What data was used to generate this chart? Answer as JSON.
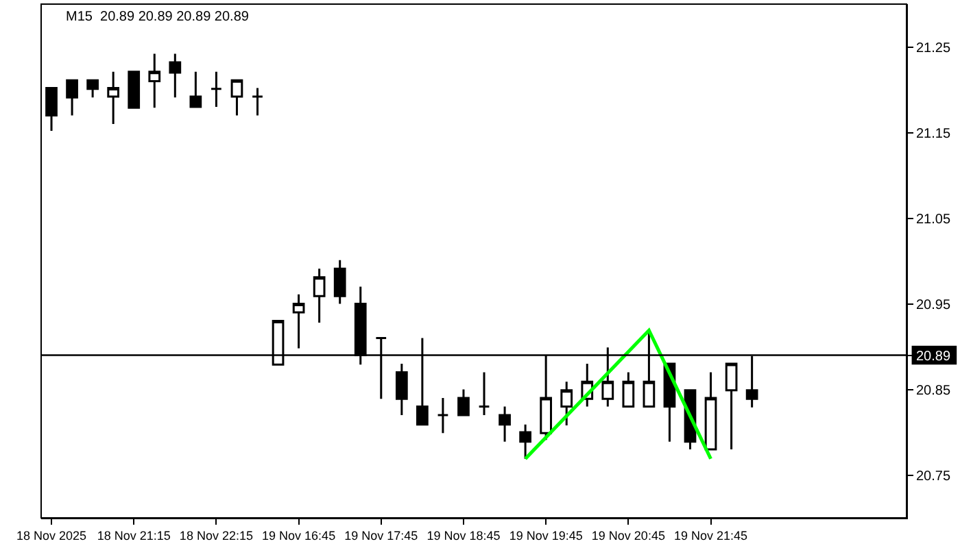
{
  "chart_data": {
    "type": "candlestick",
    "title": "M15  20.89 20.89 20.89 20.89",
    "categories": [
      "18 Nov 2025",
      null,
      null,
      null,
      "18 Nov 21:15",
      null,
      null,
      null,
      "18 Nov 22:15",
      null,
      null,
      null,
      "19 Nov 16:45",
      null,
      null,
      null,
      "19 Nov 17:45",
      null,
      null,
      null,
      "19 Nov 18:45",
      null,
      null,
      null,
      "19 Nov 19:45",
      null,
      null,
      null,
      "19 Nov 20:45",
      null,
      null,
      null,
      "19 Nov 21:45",
      null,
      null,
      null,
      null,
      null,
      null,
      null,
      null,
      null
    ],
    "series": [
      {
        "type": "candlestick",
        "color": "#000000",
        "ohlc": [
          [
            21.202,
            21.202,
            21.152,
            21.17
          ],
          [
            21.211,
            21.211,
            21.17,
            21.191
          ],
          [
            21.211,
            21.211,
            21.191,
            21.201
          ],
          [
            21.192,
            21.221,
            21.16,
            21.202
          ],
          [
            21.221,
            21.221,
            21.179,
            21.179
          ],
          [
            21.21,
            21.242,
            21.179,
            21.221
          ],
          [
            21.232,
            21.242,
            21.191,
            21.22
          ],
          [
            21.192,
            21.221,
            21.18,
            21.18
          ],
          [
            21.201,
            21.221,
            21.18,
            21.201
          ],
          [
            21.192,
            21.211,
            21.17,
            21.211
          ],
          [
            21.192,
            21.202,
            21.17,
            21.192
          ],
          [
            20.879,
            20.93,
            20.879,
            20.93
          ],
          [
            20.94,
            20.961,
            20.898,
            20.95
          ],
          [
            20.959,
            20.991,
            20.928,
            20.981
          ],
          [
            20.991,
            21.001,
            20.95,
            20.959
          ],
          [
            20.95,
            20.97,
            20.879,
            20.89
          ],
          [
            20.91,
            20.91,
            20.839,
            20.91
          ],
          [
            20.87,
            20.88,
            20.82,
            20.839
          ],
          [
            20.83,
            20.91,
            20.809,
            20.809
          ],
          [
            20.82,
            20.84,
            20.799,
            20.82
          ],
          [
            20.84,
            20.85,
            20.82,
            20.82
          ],
          [
            20.83,
            20.87,
            20.82,
            20.83
          ],
          [
            20.82,
            20.83,
            20.789,
            20.809
          ],
          [
            20.8,
            20.809,
            20.769,
            20.789
          ],
          [
            20.799,
            20.89,
            20.791,
            20.84
          ],
          [
            20.83,
            20.859,
            20.808,
            20.849
          ],
          [
            20.839,
            20.88,
            20.83,
            20.859
          ],
          [
            20.839,
            20.899,
            20.83,
            20.859
          ],
          [
            20.83,
            20.87,
            20.83,
            20.859
          ],
          [
            20.83,
            20.919,
            20.83,
            20.859
          ],
          [
            20.88,
            20.88,
            20.789,
            20.83
          ],
          [
            20.849,
            20.849,
            20.78,
            20.789
          ],
          [
            20.78,
            20.87,
            20.78,
            20.84
          ],
          [
            20.849,
            20.88,
            20.78,
            20.88
          ],
          [
            20.849,
            20.889,
            20.829,
            20.839
          ],
          null,
          null,
          null,
          null,
          null,
          null,
          null
        ]
      },
      {
        "type": "line",
        "color": "#00ff00",
        "values": [
          null,
          null,
          null,
          null,
          null,
          null,
          null,
          null,
          null,
          null,
          null,
          null,
          null,
          null,
          null,
          null,
          null,
          null,
          null,
          null,
          null,
          null,
          null,
          20.769,
          null,
          null,
          null,
          null,
          null,
          20.919,
          null,
          null,
          20.769,
          null,
          null,
          null,
          null,
          null,
          null,
          null,
          null,
          null
        ]
      }
    ],
    "ylim": [
      20.7,
      21.3
    ],
    "yticks": [
      20.75,
      20.85,
      20.95,
      21.05,
      21.15,
      21.25
    ],
    "ref_lines": [
      {
        "axis": "y",
        "value": 20.89,
        "label": "20.89",
        "color": "#000000"
      }
    ]
  }
}
